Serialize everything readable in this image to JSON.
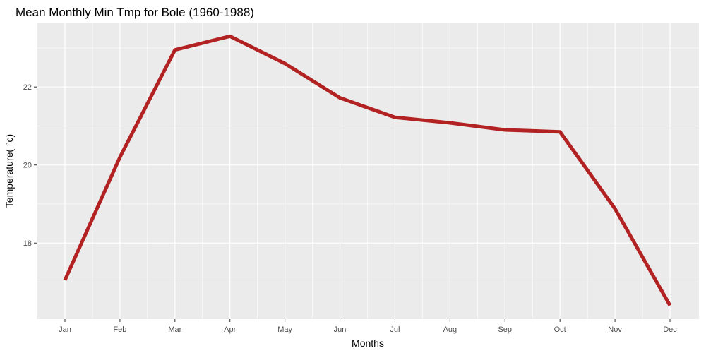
{
  "chart_data": {
    "type": "line",
    "title": "Mean Monthly Min Tmp for Bole (1960-1988)",
    "xlabel": "Months",
    "ylabel": "Temperature( °c)",
    "categories": [
      "Jan",
      "Feb",
      "Mar",
      "Apr",
      "May",
      "Jun",
      "Jul",
      "Aug",
      "Sep",
      "Oct",
      "Nov",
      "Dec"
    ],
    "series": [
      {
        "values": [
          17.05,
          20.2,
          22.95,
          23.3,
          22.6,
          21.72,
          21.22,
          21.08,
          20.9,
          20.85,
          18.88,
          16.4
        ]
      }
    ],
    "ylim": [
      16.05,
      23.65
    ],
    "yticks": [
      18,
      20,
      22
    ],
    "yminor": [
      17,
      19,
      21,
      23
    ],
    "grid": true,
    "legend": "none",
    "colors": {
      "line": "#B22222",
      "panel": "#EBEBEB",
      "grid": "#FFFFFF",
      "tick_text": "#4D4D4D",
      "tick": "#333333"
    }
  }
}
